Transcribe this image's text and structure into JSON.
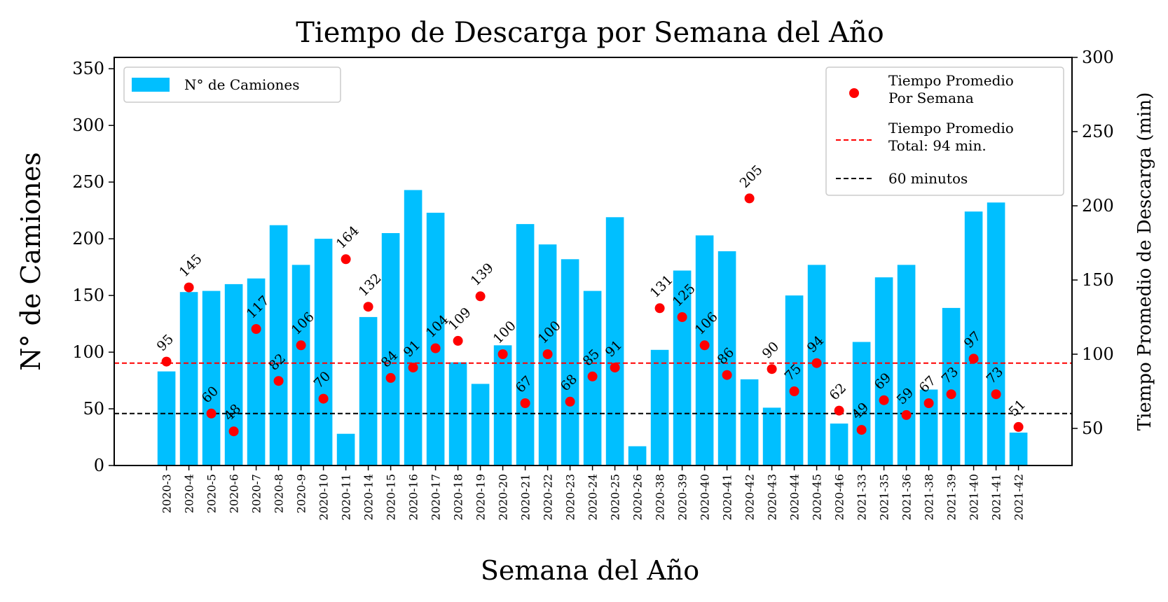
{
  "chart_data": {
    "type": "bar",
    "title": "Tiempo de Descarga por Semana del Año",
    "xlabel": "Semana del Año",
    "ylabel": "N° de Camiones",
    "y2label": "Tiempo Promedio de Descarga (min)",
    "ylim": [
      0,
      360
    ],
    "y2lim": [
      25,
      300
    ],
    "yticks": [
      0,
      50,
      100,
      150,
      200,
      250,
      300,
      350
    ],
    "y2ticks": [
      50,
      100,
      150,
      200,
      250,
      300
    ],
    "categories": [
      "2020-3",
      "2020-4",
      "2020-5",
      "2020-6",
      "2020-7",
      "2020-8",
      "2020-9",
      "2020-10",
      "2020-11",
      "2020-14",
      "2020-15",
      "2020-16",
      "2020-17",
      "2020-18",
      "2020-19",
      "2020-20",
      "2020-21",
      "2020-22",
      "2020-23",
      "2020-24",
      "2020-25",
      "2020-26",
      "2020-38",
      "2020-39",
      "2020-40",
      "2020-41",
      "2020-42",
      "2020-43",
      "2020-44",
      "2020-45",
      "2020-46",
      "2021-33",
      "2021-35",
      "2021-36",
      "2021-38",
      "2021-39",
      "2021-40",
      "2021-41",
      "2021-42"
    ],
    "series": [
      {
        "name": "N° de Camiones",
        "axis": "left",
        "kind": "bar",
        "color": "#00bfff",
        "values": [
          83,
          153,
          154,
          160,
          165,
          212,
          177,
          200,
          28,
          131,
          205,
          243,
          223,
          91,
          72,
          106,
          213,
          195,
          182,
          154,
          219,
          17,
          102,
          172,
          203,
          189,
          76,
          51,
          150,
          177,
          37,
          109,
          166,
          177,
          67,
          139,
          224,
          232,
          29
        ]
      },
      {
        "name": "Tiempo Promedio Por Semana",
        "legend_lines": [
          "Tiempo Promedio",
          "Por Semana"
        ],
        "axis": "right",
        "kind": "scatter",
        "color": "#ff0000",
        "values": [
          95,
          145,
          60,
          48,
          117,
          82,
          106,
          70,
          164,
          132,
          84,
          91,
          104,
          109,
          139,
          100,
          67,
          100,
          68,
          85,
          91,
          null,
          131,
          125,
          106,
          86,
          205,
          90,
          75,
          94,
          62,
          49,
          69,
          59,
          67,
          73,
          97,
          73,
          51
        ],
        "labels": [
          "95",
          "145",
          "60",
          "48",
          "117",
          "82",
          "106",
          "70",
          "164",
          "132",
          "84",
          "91",
          "104",
          "109",
          "139",
          "100",
          "67",
          "100",
          "68",
          "85",
          "91",
          "",
          "131",
          "125",
          "106",
          "86",
          "205",
          "90",
          "75",
          "94",
          "62",
          "49",
          "69",
          "59",
          "67",
          "73",
          "97",
          "73",
          "51"
        ]
      }
    ],
    "reference_lines": [
      {
        "name": "Tiempo Promedio Total: 94 min.",
        "legend_lines": [
          "Tiempo Promedio",
          "Total: 94 min."
        ],
        "axis": "right",
        "value": 94,
        "color": "#ff0000",
        "style": "dashed"
      },
      {
        "name": "60 minutos",
        "legend_lines": [
          "60 minutos"
        ],
        "axis": "right",
        "value": 60,
        "color": "#000000",
        "style": "dashed"
      }
    ],
    "legend_left": "top-left",
    "legend_right": "top-right",
    "grid": false
  }
}
